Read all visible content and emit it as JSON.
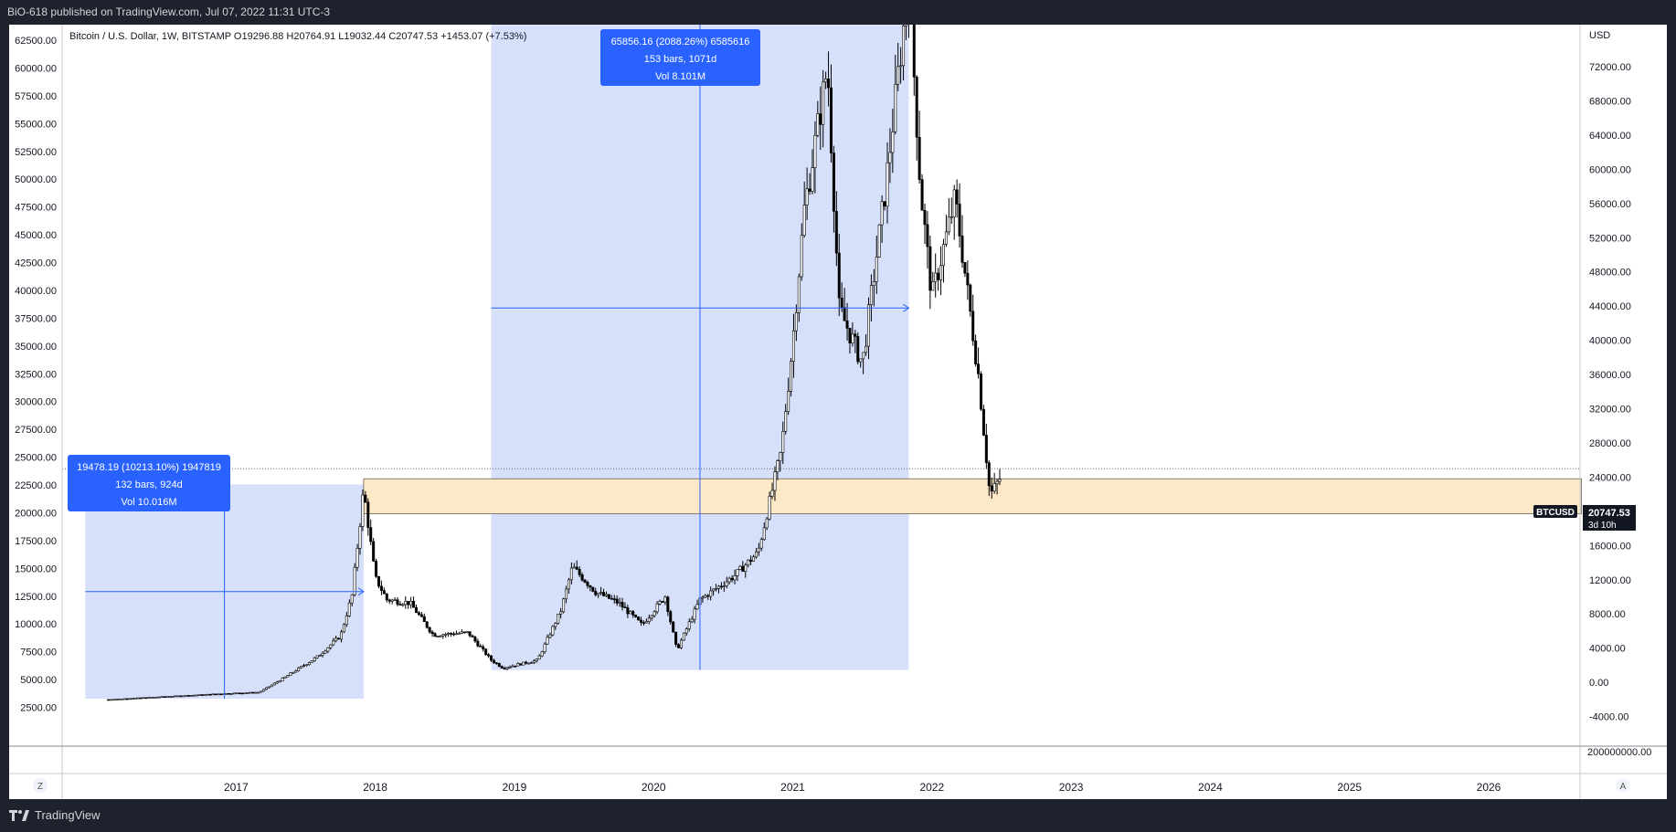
{
  "header": {
    "published_line": "BiO-618 published on TradingView.com, Jul 07, 2022 11:31 UTC-3"
  },
  "footer": {
    "brand": "TradingView"
  },
  "legend": {
    "symbol_line": "Bitcoin / U.S. Dollar, 1W, BITSTAMP  O19296.88  H20764.91  L19032.44  C20747.53  +1453.07 (+7.53%)"
  },
  "measure_boxes": [
    {
      "line1": "19478.19 (10213.10%) 1947819",
      "line2": "132 bars, 924d",
      "line3": "Vol 10.016M"
    },
    {
      "line1": "65856.16 (2088.26%) 6585616",
      "line2": "153 bars, 1071d",
      "line3": "Vol 8.101M"
    }
  ],
  "price_badge": {
    "symbol": "BTCUSD",
    "price": "20747.53",
    "countdown": "3d 10h"
  },
  "axis_buttons": {
    "left": "Z",
    "right": "A"
  },
  "colors": {
    "candle": "#000000",
    "measure_fill": "#d6e0fb",
    "measure_line": "#2962ff",
    "label_bg": "#2962ff",
    "zone_fill": "#fde8c8",
    "zone_border": "#333333",
    "background": "#ffffff",
    "frame": "#1e222d"
  },
  "chart_data": {
    "type": "candlestick",
    "title": "Bitcoin / U.S. Dollar, 1W, BITSTAMP",
    "left_axis": {
      "ticks": [
        "62500.00",
        "60000.00",
        "57500.00",
        "55000.00",
        "52500.00",
        "50000.00",
        "47500.00",
        "45000.00",
        "42500.00",
        "40000.00",
        "37500.00",
        "35000.00",
        "32500.00",
        "30000.00",
        "27500.00",
        "25000.00",
        "22500.00",
        "20000.00",
        "17500.00",
        "15000.00",
        "12500.00",
        "10000.00",
        "7500.00",
        "5000.00",
        "2500.00"
      ]
    },
    "right_axis": {
      "unit": "USD",
      "ticks": [
        "72000.00",
        "68000.00",
        "64000.00",
        "60000.00",
        "56000.00",
        "52000.00",
        "48000.00",
        "44000.00",
        "40000.00",
        "36000.00",
        "32000.00",
        "28000.00",
        "24000.00",
        "20000.00",
        "16000.00",
        "12000.00",
        "8000.00",
        "4000.00",
        "0.00",
        "-4000.00"
      ],
      "volume_tick": "200000000.00"
    },
    "x_axis": {
      "ticks": [
        "2017",
        "2018",
        "2019",
        "2020",
        "2021",
        "2022",
        "2023",
        "2024",
        "2025",
        "2026"
      ]
    },
    "ylim": [
      0,
      63500
    ],
    "series": [
      {
        "date": "2016-02",
        "close": 420
      },
      {
        "date": "2016-06",
        "close": 640
      },
      {
        "date": "2016-12",
        "close": 960
      },
      {
        "date": "2017-03",
        "close": 1080
      },
      {
        "date": "2017-05",
        "close": 2300
      },
      {
        "date": "2017-08",
        "close": 4300
      },
      {
        "date": "2017-10",
        "close": 6200
      },
      {
        "date": "2017-11",
        "close": 9900
      },
      {
        "date": "2017-12",
        "close": 19478
      },
      {
        "date": "2018-01",
        "close": 11500
      },
      {
        "date": "2018-02",
        "close": 9500
      },
      {
        "date": "2018-04",
        "close": 9200
      },
      {
        "date": "2018-06",
        "close": 6300
      },
      {
        "date": "2018-09",
        "close": 6500
      },
      {
        "date": "2018-11",
        "close": 4000
      },
      {
        "date": "2018-12",
        "close": 3300
      },
      {
        "date": "2019-03",
        "close": 4000
      },
      {
        "date": "2019-05",
        "close": 8500
      },
      {
        "date": "2019-06",
        "close": 12500
      },
      {
        "date": "2019-08",
        "close": 10200
      },
      {
        "date": "2019-10",
        "close": 9200
      },
      {
        "date": "2019-12",
        "close": 7200
      },
      {
        "date": "2020-02",
        "close": 9800
      },
      {
        "date": "2020-03",
        "close": 4900
      },
      {
        "date": "2020-05",
        "close": 9500
      },
      {
        "date": "2020-08",
        "close": 11700
      },
      {
        "date": "2020-10",
        "close": 13800
      },
      {
        "date": "2020-12",
        "close": 23000
      },
      {
        "date": "2021-01",
        "close": 33000
      },
      {
        "date": "2021-02",
        "close": 45000
      },
      {
        "date": "2021-04",
        "close": 58000
      },
      {
        "date": "2021-05",
        "close": 36000
      },
      {
        "date": "2021-07",
        "close": 31000
      },
      {
        "date": "2021-09",
        "close": 47000
      },
      {
        "date": "2021-11",
        "close": 65856
      },
      {
        "date": "2021-12",
        "close": 47000
      },
      {
        "date": "2022-01",
        "close": 37000
      },
      {
        "date": "2022-03",
        "close": 46000
      },
      {
        "date": "2022-05",
        "close": 30000
      },
      {
        "date": "2022-06",
        "close": 19000
      },
      {
        "date": "2022-07",
        "close": 20747
      }
    ],
    "measure_ranges": [
      {
        "from_date": "2015-12",
        "to_date": "2017-12",
        "low": 500,
        "high": 19978
      },
      {
        "from_date": "2018-11",
        "to_date": "2021-11",
        "low": 3100,
        "high": 68956
      }
    ],
    "support_zone": {
      "from_date": "2017-12",
      "to_date": "2026-09",
      "low": 17300,
      "high": 20500
    },
    "last_price": 20747.53
  }
}
